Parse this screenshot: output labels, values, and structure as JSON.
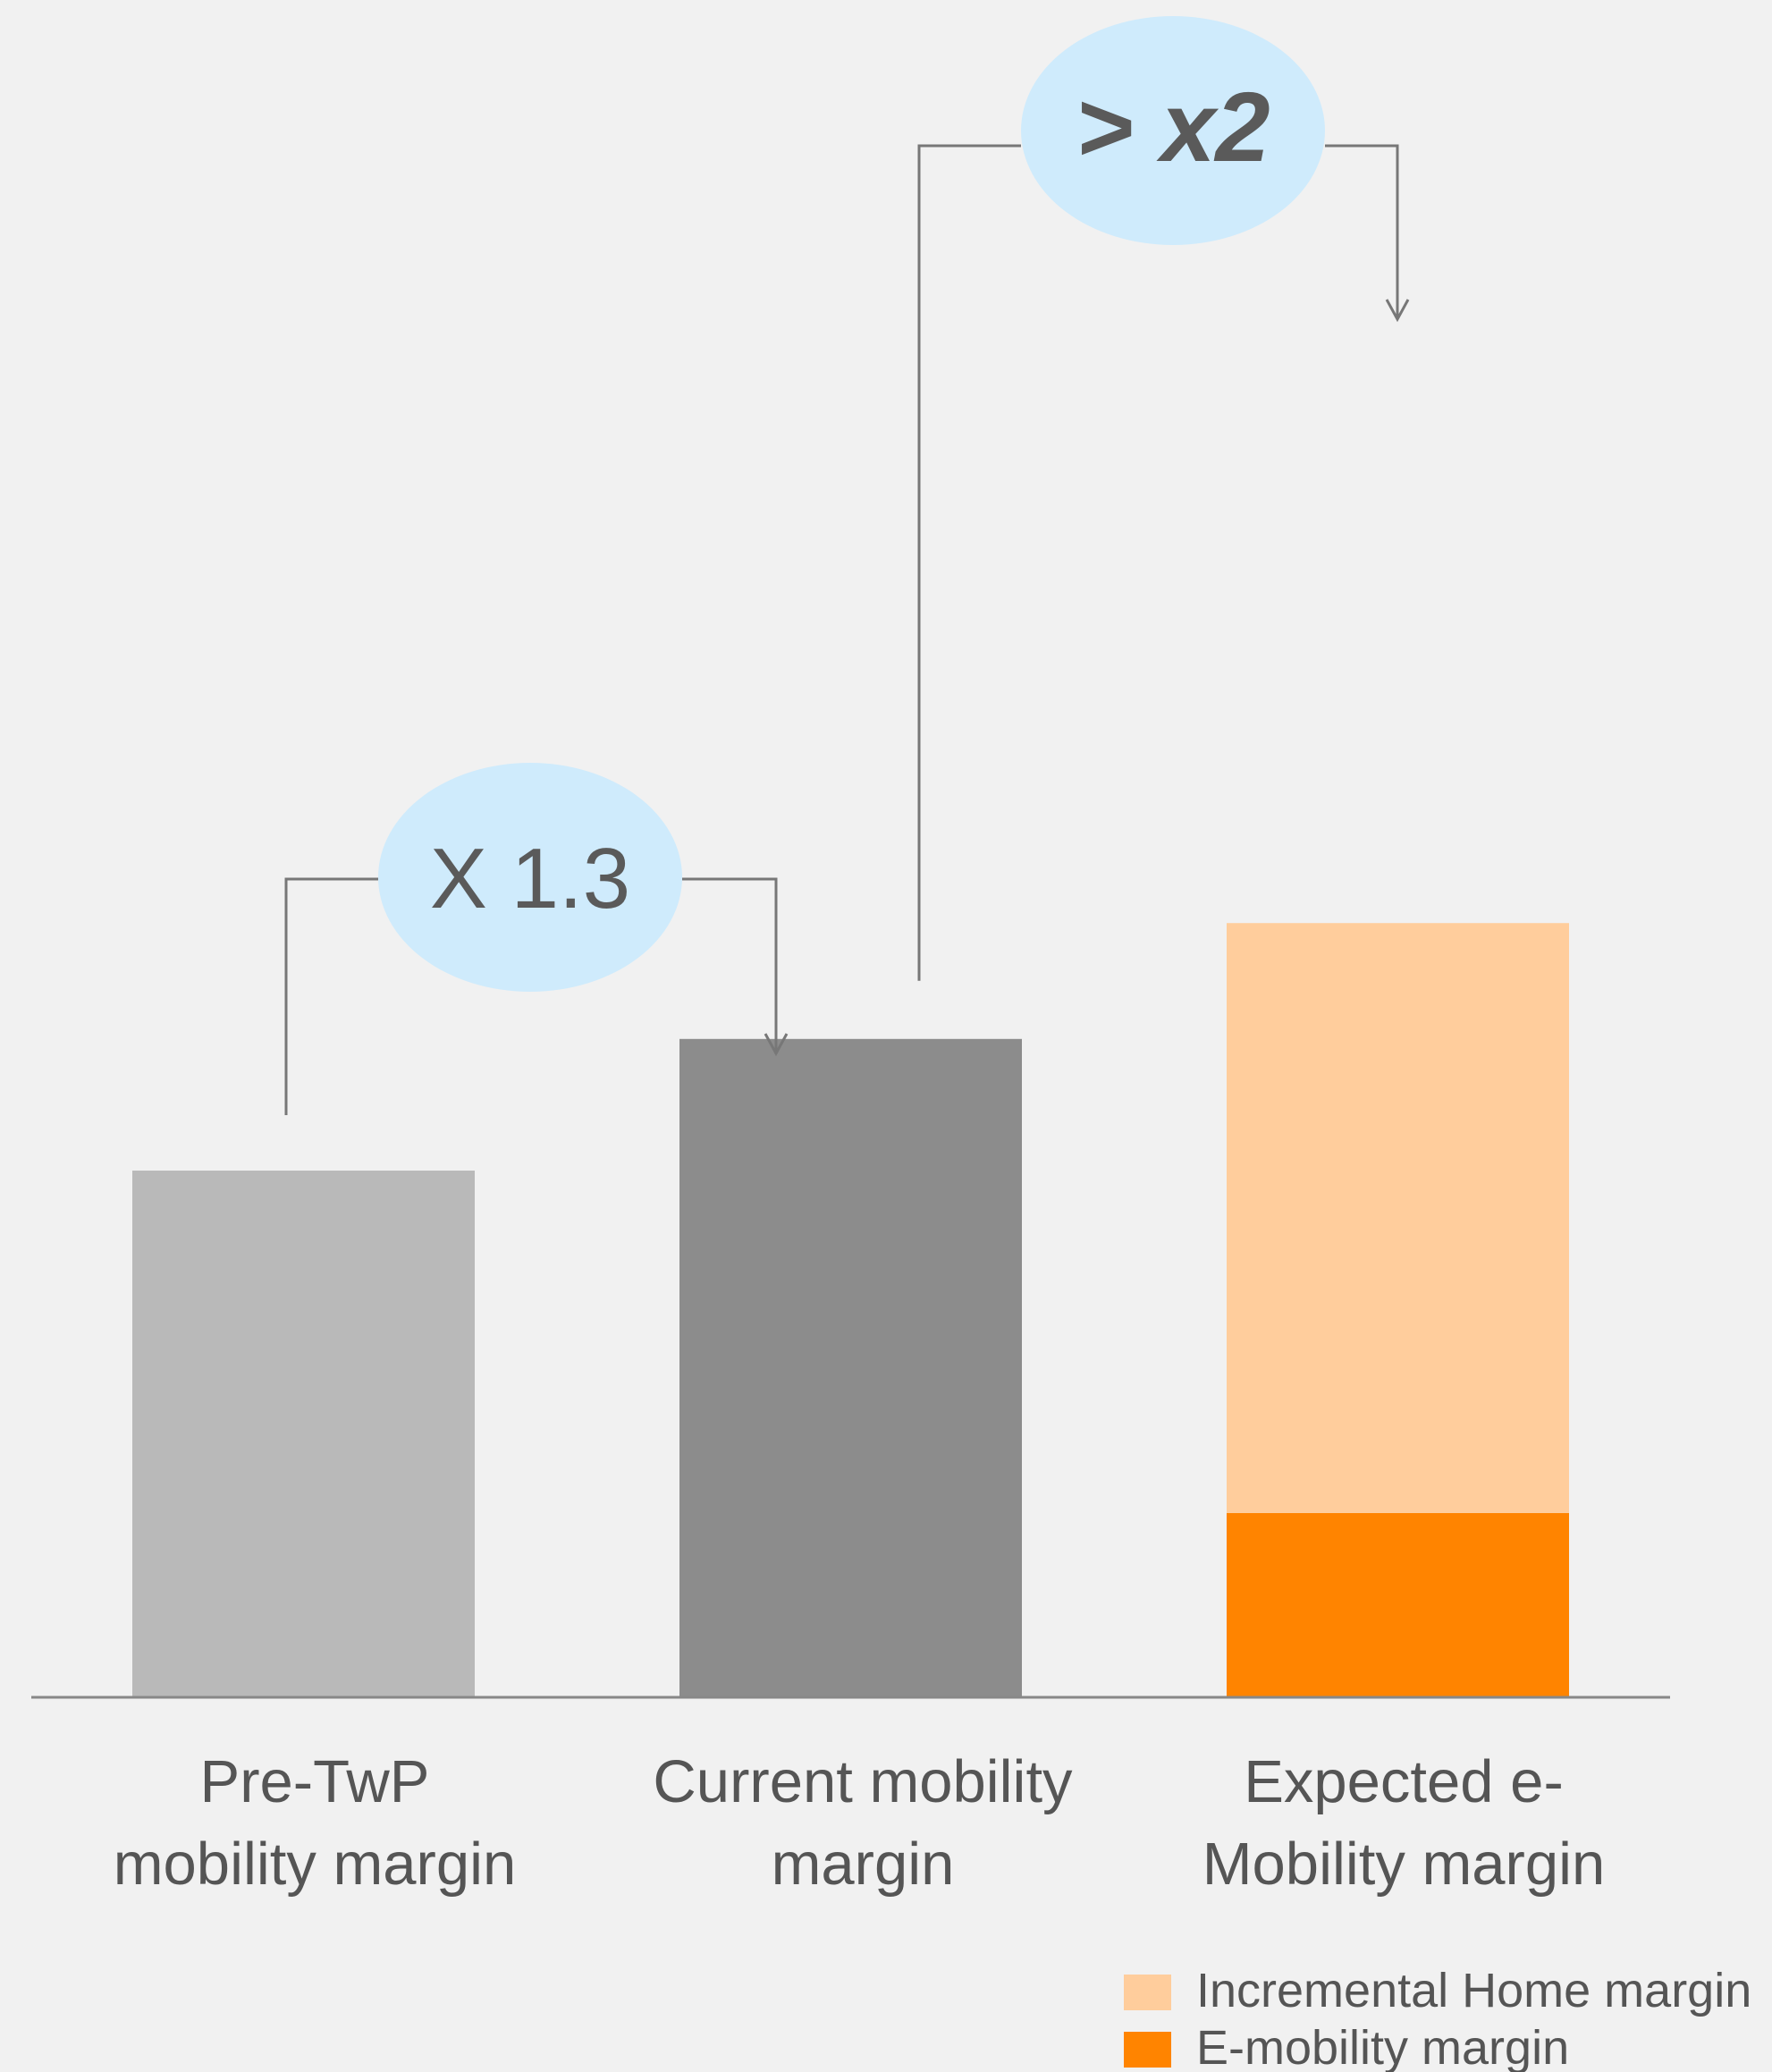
{
  "chart_data": {
    "type": "bar",
    "categories": [
      [
        "Pre-TwP",
        "mobility margin"
      ],
      [
        "Current mobility",
        "margin"
      ],
      [
        "Expected e-",
        "Mobility margin"
      ]
    ],
    "series": [
      {
        "name": "E-mobility margin",
        "values": [
          0,
          0,
          0.35
        ]
      },
      {
        "name": "Incremental  Home margin",
        "values": [
          0,
          0,
          1.12
        ]
      }
    ],
    "single_values": [
      1.0,
      1.25
    ],
    "ylim": [
      0,
      2.9
    ],
    "grid": false,
    "legend_position": "bottom-right",
    "annotations": [
      {
        "text": "X 1.3",
        "from": 0,
        "to": 1
      },
      {
        "text": "> x2",
        "from": 1,
        "to": 2
      }
    ],
    "colors": {
      "pre_twp": "#b9b9b9",
      "current": "#8c8c8c",
      "emobility": "#ff8400",
      "home": "#ffcd9c",
      "bubble": "#cfebfc",
      "connector": "#777777",
      "axis": "#888888"
    }
  }
}
